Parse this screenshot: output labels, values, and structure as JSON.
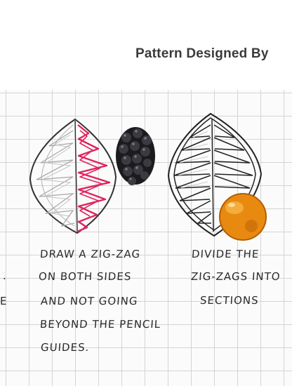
{
  "header": {
    "title": "Pattern Designed By"
  },
  "left_margin_fragments": [
    "E",
    "."
  ],
  "step1": {
    "lines": [
      "DRAW A ZIG-ZAG",
      "ON BOTH SIDES",
      "AND NOT GOING",
      "BEYOND THE PENCIL",
      "GUIDES."
    ]
  },
  "step2": {
    "lines": [
      "DIVIDE THE",
      "ZIG-ZAGS INTO",
      "SECTIONS"
    ]
  },
  "colors": {
    "accent_pink": "#e0245e",
    "grid_line": "#d4d4d4",
    "ink": "#2a2a2a",
    "pencil": "#a8a8a8"
  }
}
